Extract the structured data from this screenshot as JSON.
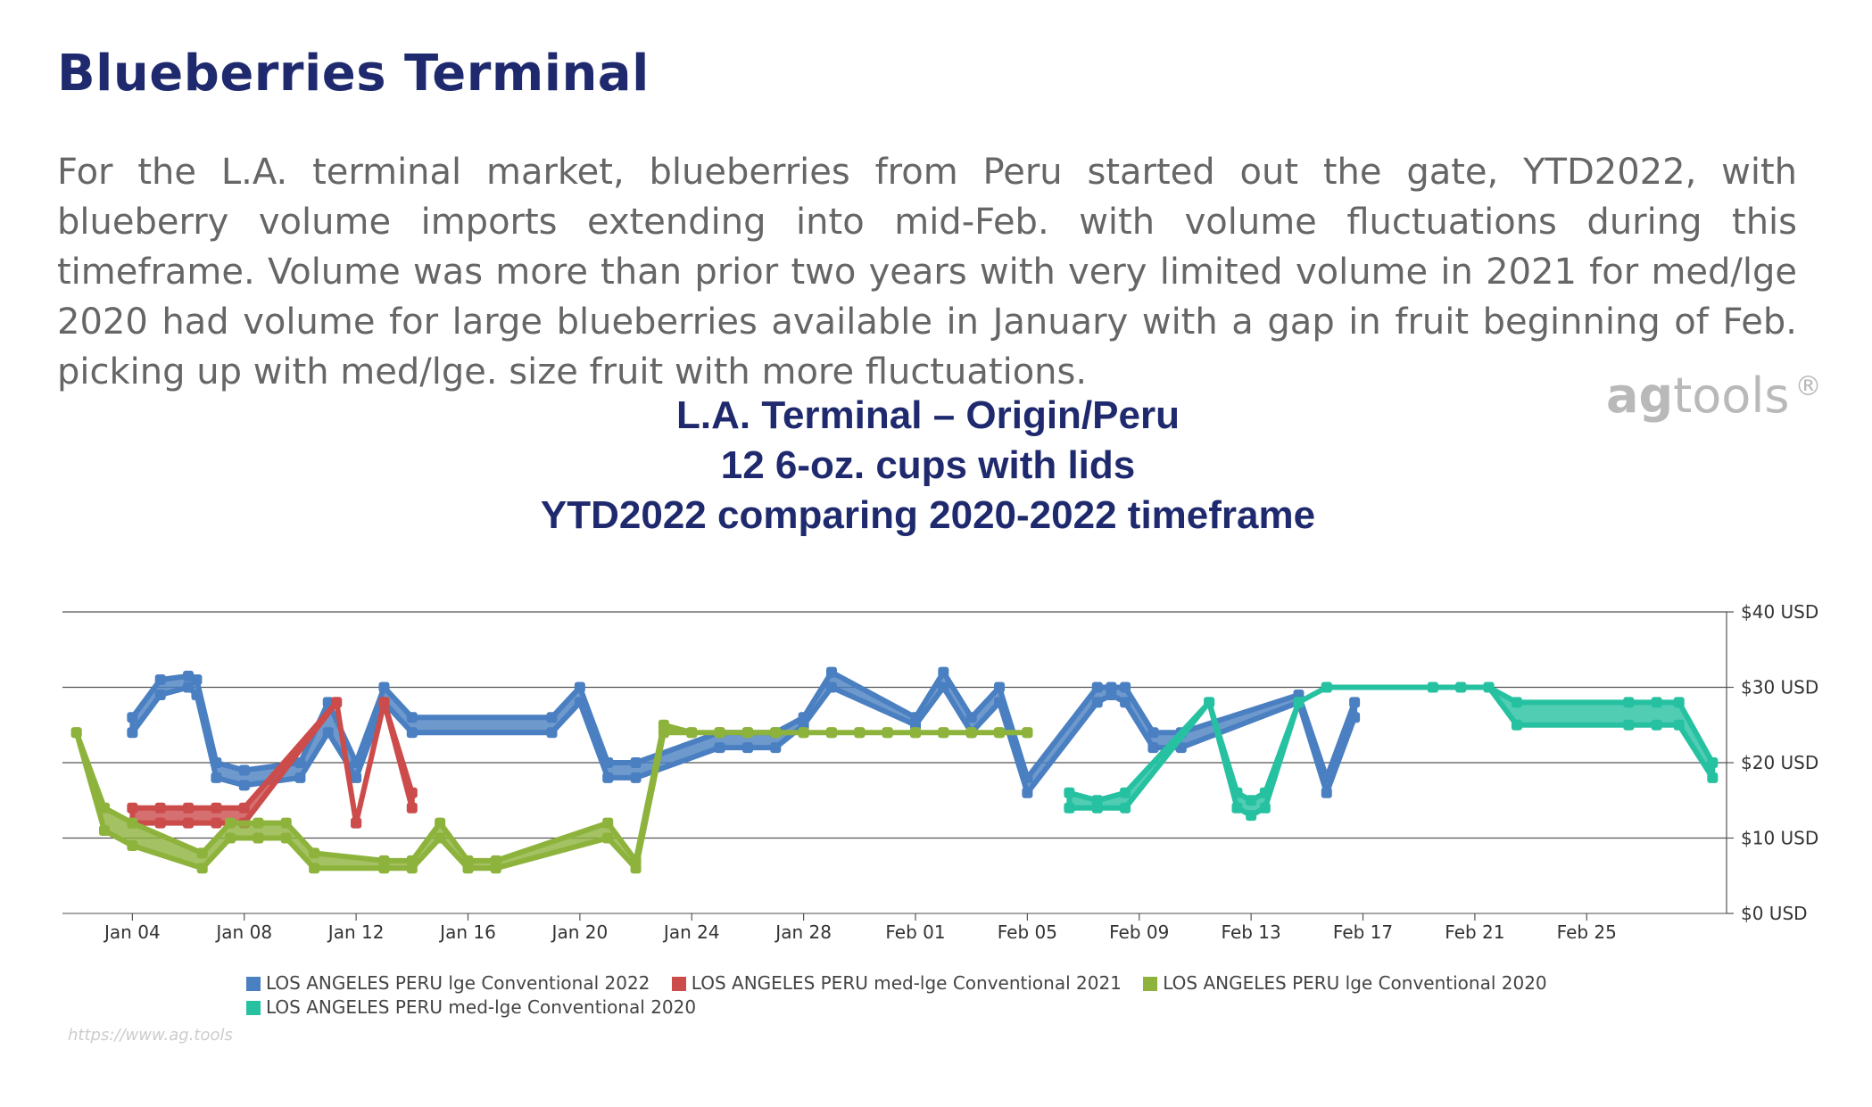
{
  "page": {
    "title": "Blueberries Terminal",
    "paragraph": "For the L.A. terminal market, blueberries from Peru started out the gate, YTD2022, with blueberry volume imports extending into mid-Feb. with volume fluctuations during this timeframe.  Volume was more than prior two years with very limited volume in 2021 for med/lge  2020 had volume for large blueberries available in January with a gap in fruit beginning of Feb. picking up with med/lge. size fruit with more fluctuations.",
    "logo_ag": "ag",
    "logo_tools": "tools",
    "logo_mark": "®",
    "source_text": "https://www.ag.tools"
  },
  "chart_data": {
    "type": "area",
    "title_lines": [
      "L.A. Terminal – Origin/Peru",
      "12 6-oz. cups with lids",
      "YTD2022 comparing 2020-2022 timeframe"
    ],
    "x_tick_labels": [
      "Jan 04",
      "Jan 08",
      "Jan 12",
      "Jan 16",
      "Jan 20",
      "Jan 24",
      "Jan 28",
      "Feb 01",
      "Feb 05",
      "Feb 09",
      "Feb 13",
      "Feb 17",
      "Feb 21",
      "Feb 25"
    ],
    "x_range_days": [
      1.5,
      61
    ],
    "y_tick_labels": [
      "$0 USD",
      "$10 USD",
      "$20 USD",
      "$30 USD",
      "$40 USD"
    ],
    "y_ticks": [
      0,
      10,
      20,
      30,
      40
    ],
    "ylim": [
      0,
      40
    ],
    "y_axis_position": "right",
    "grid": true,
    "legend_position": "bottom",
    "series": [
      {
        "name": "LOS ANGELES PERU  lge  Conventional 2022",
        "color": "#4a7fc1",
        "points": [
          [
            4,
            24,
            26
          ],
          [
            5,
            29,
            31
          ],
          [
            6,
            30,
            31.5
          ],
          [
            6.3,
            29,
            31
          ],
          [
            7,
            18,
            20
          ],
          [
            8,
            17,
            19
          ],
          [
            10,
            18,
            20
          ],
          [
            11,
            24,
            28
          ],
          [
            12,
            18,
            20
          ],
          [
            13,
            28,
            30
          ],
          [
            14,
            24,
            26
          ],
          [
            19,
            24,
            26
          ],
          [
            20,
            28,
            30
          ],
          [
            21,
            18,
            20
          ],
          [
            22,
            18,
            20
          ],
          [
            25,
            22,
            24
          ],
          [
            26,
            22,
            24
          ],
          [
            27,
            22,
            24
          ],
          [
            28,
            25,
            26
          ],
          [
            29,
            30,
            32
          ],
          [
            32,
            25,
            26
          ],
          [
            33,
            30,
            32
          ],
          [
            34,
            24,
            26
          ],
          [
            35,
            28,
            30
          ],
          [
            36,
            16,
            18
          ],
          [
            38.5,
            28,
            30
          ],
          [
            39,
            29,
            30
          ],
          [
            39.5,
            28,
            30
          ],
          [
            40.5,
            22,
            24
          ],
          [
            41.5,
            22,
            24
          ],
          [
            45.7,
            28,
            29
          ],
          [
            46.7,
            16,
            18
          ],
          [
            47.7,
            26,
            28
          ]
        ]
      },
      {
        "name": "LOS ANGELES PERU  med-lge  Conventional 2021",
        "color": "#cc4b4b",
        "points": [
          [
            4,
            12,
            14
          ],
          [
            5,
            12,
            14
          ],
          [
            6,
            12,
            14
          ],
          [
            7,
            12,
            14
          ],
          [
            8,
            12,
            14
          ],
          [
            11.3,
            28,
            28
          ],
          [
            12,
            12,
            12
          ],
          [
            13,
            28,
            28
          ],
          [
            14,
            14,
            16
          ]
        ]
      },
      {
        "name": "LOS ANGELES PERU  lge  Conventional 2020",
        "color": "#8db33c",
        "points": [
          [
            2,
            24,
            24
          ],
          [
            3,
            11,
            14
          ],
          [
            4,
            9,
            12
          ],
          [
            6.5,
            6,
            8
          ],
          [
            7.5,
            10,
            12
          ],
          [
            8.5,
            10,
            12
          ],
          [
            9.5,
            10,
            12
          ],
          [
            10.5,
            6,
            8
          ],
          [
            13,
            6,
            7
          ],
          [
            14,
            6,
            7
          ],
          [
            15,
            10,
            12
          ],
          [
            16,
            6,
            7
          ],
          [
            17,
            6,
            7
          ],
          [
            21,
            10,
            12
          ],
          [
            22,
            6,
            7
          ],
          [
            23,
            24,
            25
          ],
          [
            24,
            24,
            24
          ],
          [
            25,
            24,
            24
          ],
          [
            26,
            24,
            24
          ],
          [
            27,
            24,
            24
          ],
          [
            28,
            24,
            24
          ],
          [
            29,
            24,
            24
          ],
          [
            30,
            24,
            24
          ],
          [
            31,
            24,
            24
          ],
          [
            32,
            24,
            24
          ],
          [
            33,
            24,
            24
          ],
          [
            34,
            24,
            24
          ],
          [
            35,
            24,
            24
          ],
          [
            36,
            24,
            24
          ]
        ]
      },
      {
        "name": "LOS ANGELES PERU  med-lge  Conventional 2020",
        "color": "#25c1a1",
        "points": [
          [
            37.5,
            14,
            16
          ],
          [
            38.5,
            14,
            15
          ],
          [
            39.5,
            14,
            16
          ],
          [
            42.5,
            28,
            28
          ],
          [
            43.5,
            14,
            16
          ],
          [
            44,
            13,
            15
          ],
          [
            44.5,
            14,
            16
          ],
          [
            45.7,
            28,
            28
          ],
          [
            46.7,
            30,
            30
          ],
          [
            50.5,
            30,
            30
          ],
          [
            51.5,
            30,
            30
          ],
          [
            52.5,
            30,
            30
          ],
          [
            53.5,
            25,
            28
          ],
          [
            57.5,
            25,
            28
          ],
          [
            58.5,
            25,
            28
          ],
          [
            59.3,
            25,
            28
          ],
          [
            60.5,
            18,
            20
          ]
        ]
      }
    ]
  }
}
